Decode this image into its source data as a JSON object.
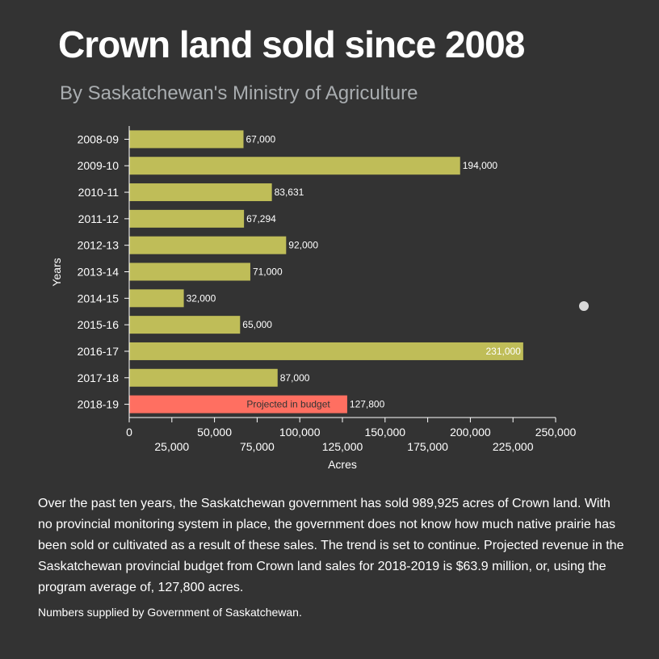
{
  "header": {
    "title": "Crown land sold since 2008",
    "subtitle": "By Saskatchewan's Ministry of Agriculture"
  },
  "chart_data": {
    "type": "bar",
    "orientation": "horizontal",
    "categories": [
      "2008-09",
      "2009-10",
      "2010-11",
      "2011-12",
      "2012-13",
      "2013-14",
      "2014-15",
      "2015-16",
      "2016-17",
      "2017-18",
      "2018-19"
    ],
    "values": [
      67000,
      194000,
      83631,
      67294,
      92000,
      71000,
      32000,
      65000,
      231000,
      87000,
      127800
    ],
    "value_labels": [
      "67,000",
      "194,000",
      "83,631",
      "67,294",
      "92,000",
      "71,000",
      "32,000",
      "65,000",
      "231,000",
      "87,000",
      "127,800"
    ],
    "bar_annotations": {
      "2018-19": "Projected in budget"
    },
    "xlabel": "Acres",
    "ylabel": "Years",
    "xlim": [
      0,
      250000
    ],
    "x_ticks": [
      "0",
      "25,000",
      "50,000",
      "75,000",
      "100,000",
      "125,000",
      "150,000",
      "175,000",
      "200,000",
      "225,000",
      "250,000"
    ],
    "colors": {
      "actual": "#bfbd58",
      "projected": "#ff6f61"
    },
    "grid": false
  },
  "footer": {
    "description": "Over the past ten years, the Saskatchewan government has sold 989,925 acres of Crown land. With no provincial monitoring system in place, the government does not know how much native prairie has been sold or cultivated as a result of these sales. The trend is set to continue. Projected revenue in the Saskatchewan provincial budget from Crown land sales for 2018-2019 is $63.9 million, or, using the program average of, 127,800 acres.",
    "source": "Numbers supplied by Government of Saskatchewan."
  }
}
